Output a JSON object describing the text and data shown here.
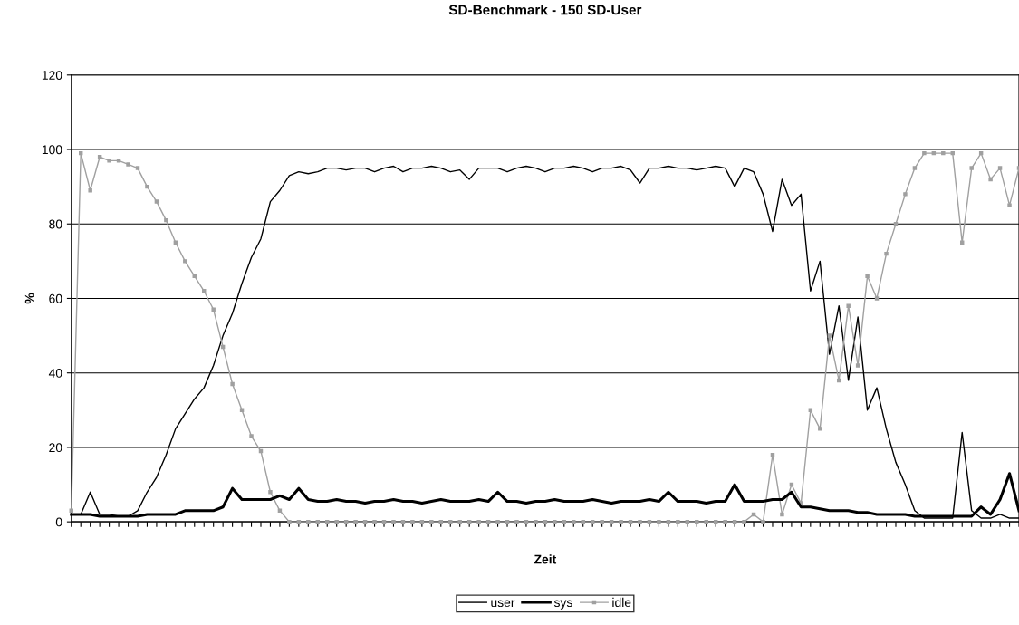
{
  "chart_data": {
    "type": "line",
    "title": "SD-Benchmark - 150 SD-User",
    "xlabel": "Zeit",
    "ylabel": "%",
    "categories": [
      null,
      null,
      null,
      null,
      null,
      null,
      null,
      null,
      null,
      null,
      null,
      null,
      null,
      null,
      null,
      null,
      null,
      null,
      null,
      null,
      null,
      null,
      null,
      null,
      null,
      null,
      null,
      null,
      null,
      null,
      null,
      null,
      null,
      null,
      null,
      null,
      null,
      null,
      null,
      null,
      null,
      null,
      null,
      null,
      null,
      null,
      null,
      null,
      null,
      null,
      null,
      null,
      null,
      null,
      null,
      null,
      null,
      null,
      null,
      null,
      null,
      null,
      null,
      null,
      null,
      null,
      null,
      null,
      null,
      null,
      null,
      null,
      null,
      null,
      null,
      null,
      null,
      null,
      null,
      null,
      null,
      null,
      null,
      null,
      null,
      null,
      null,
      null,
      null,
      null,
      null,
      null,
      null,
      null,
      null,
      null,
      null,
      null,
      null,
      null,
      null
    ],
    "ylim": [
      0,
      120
    ],
    "yticks": [
      0,
      20,
      40,
      60,
      80,
      100,
      120
    ],
    "grid": "y",
    "legend": "bottom",
    "tick_labels": "y",
    "series": [
      {
        "name": "user",
        "color": "#000000",
        "marker": "none",
        "values": [
          2,
          2,
          8,
          2,
          2,
          1.5,
          1.5,
          3,
          8,
          12,
          18,
          25,
          29,
          33,
          36,
          42,
          50,
          56,
          64,
          71,
          76,
          86,
          89,
          93,
          94,
          93.5,
          94,
          95,
          95,
          94.5,
          95,
          95,
          94,
          95,
          95.5,
          94,
          95,
          95,
          95.5,
          95,
          94,
          94.5,
          92,
          95,
          95,
          95,
          94,
          95,
          95.5,
          95,
          94,
          95,
          95,
          95.5,
          95,
          94,
          95,
          95,
          95.5,
          94.5,
          91,
          95,
          95,
          95.5,
          95,
          95,
          94.5,
          95,
          95.5,
          95,
          90,
          95,
          94,
          88,
          78,
          92,
          85,
          88,
          62,
          70,
          45,
          58,
          38,
          55,
          30,
          36,
          25,
          16,
          10,
          3,
          1,
          1,
          1,
          1,
          24,
          3,
          1,
          1,
          2,
          1,
          1
        ]
      },
      {
        "name": "sys",
        "color": "#000000",
        "marker": "none",
        "values": [
          2,
          2,
          2,
          1.5,
          1.5,
          1.5,
          1.5,
          1.5,
          2,
          2,
          2,
          2,
          3,
          3,
          3,
          3,
          4,
          9,
          6,
          6,
          6,
          6,
          7,
          6,
          9,
          6,
          5.5,
          5.5,
          6,
          5.5,
          5.5,
          5,
          5.5,
          5.5,
          6,
          5.5,
          5.5,
          5,
          5.5,
          6,
          5.5,
          5.5,
          5.5,
          6,
          5.5,
          8,
          5.5,
          5.5,
          5,
          5.5,
          5.5,
          6,
          5.5,
          5.5,
          5.5,
          6,
          5.5,
          5,
          5.5,
          5.5,
          5.5,
          6,
          5.5,
          8,
          5.5,
          5.5,
          5.5,
          5,
          5.5,
          5.5,
          10,
          5.5,
          5.5,
          5.5,
          6,
          6,
          8,
          4,
          4,
          3.5,
          3,
          3,
          3,
          2.5,
          2.5,
          2,
          2,
          2,
          2,
          1.5,
          1.5,
          1.5,
          1.5,
          1.5,
          1.5,
          1.5,
          4,
          2,
          6,
          13,
          3
        ]
      },
      {
        "name": "idle",
        "color": "#a0a0a0",
        "marker": "square",
        "values": [
          3,
          99,
          89,
          98,
          97,
          97,
          96,
          95,
          90,
          86,
          81,
          75,
          70,
          66,
          62,
          57,
          47,
          37,
          30,
          23,
          19,
          8,
          3,
          0,
          0,
          0,
          0,
          0,
          0,
          0,
          0,
          0,
          0,
          0,
          0,
          0,
          0,
          0,
          0,
          0,
          0,
          0,
          0,
          0,
          0,
          0,
          0,
          0,
          0,
          0,
          0,
          0,
          0,
          0,
          0,
          0,
          0,
          0,
          0,
          0,
          0,
          0,
          0,
          0,
          0,
          0,
          0,
          0,
          0,
          0,
          0,
          0,
          2,
          0,
          18,
          2,
          10,
          5,
          30,
          25,
          50,
          38,
          58,
          42,
          66,
          60,
          72,
          80,
          88,
          95,
          99,
          99,
          99,
          99,
          75,
          95,
          99,
          92,
          95,
          85,
          95
        ]
      }
    ]
  }
}
